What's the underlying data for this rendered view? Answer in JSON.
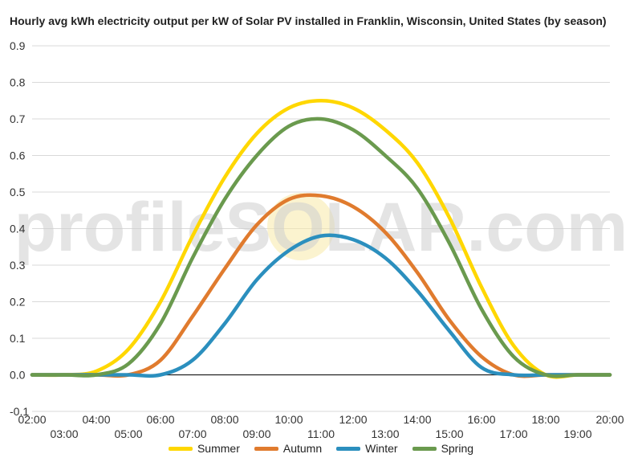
{
  "chart_data": {
    "type": "line",
    "title": "Hourly avg kWh electricity output per kW of Solar PV installed in Franklin, Wisconsin, United States (by season)",
    "watermark": "profileSOLAR.com",
    "x_ticks_upper": [
      "02:00",
      "04:00",
      "06:00",
      "08:00",
      "10:00",
      "12:00",
      "14:00",
      "16:00",
      "18:00",
      "20:00"
    ],
    "x_ticks_lower": [
      "03:00",
      "05:00",
      "07:00",
      "09:00",
      "11:00",
      "13:00",
      "15:00",
      "17:00",
      "19:00"
    ],
    "x_range": [
      2,
      20
    ],
    "ylim": [
      -0.1,
      0.9
    ],
    "y_ticks": [
      "-0.1",
      "0.0",
      "0.1",
      "0.2",
      "0.3",
      "0.4",
      "0.5",
      "0.6",
      "0.7",
      "0.8",
      "0.9"
    ],
    "grid": true,
    "legend_position": "bottom",
    "x": [
      "02:00",
      "03:00",
      "04:00",
      "05:00",
      "06:00",
      "07:00",
      "08:00",
      "09:00",
      "10:00",
      "11:00",
      "12:00",
      "13:00",
      "14:00",
      "15:00",
      "16:00",
      "17:00",
      "18:00",
      "19:00",
      "20:00"
    ],
    "series": [
      {
        "name": "Summer",
        "color": "#ffd700",
        "values": [
          0.0,
          0.0,
          0.01,
          0.07,
          0.2,
          0.38,
          0.54,
          0.66,
          0.73,
          0.75,
          0.73,
          0.67,
          0.58,
          0.43,
          0.24,
          0.08,
          0.0,
          0.0,
          0.0
        ]
      },
      {
        "name": "Autumn",
        "color": "#e07b2e",
        "values": [
          0.0,
          0.0,
          0.0,
          0.0,
          0.04,
          0.16,
          0.29,
          0.41,
          0.48,
          0.49,
          0.46,
          0.39,
          0.28,
          0.15,
          0.05,
          0.0,
          0.0,
          0.0,
          0.0
        ]
      },
      {
        "name": "Winter",
        "color": "#2b8fbe",
        "values": [
          0.0,
          0.0,
          0.0,
          0.0,
          0.0,
          0.04,
          0.14,
          0.26,
          0.34,
          0.38,
          0.37,
          0.32,
          0.23,
          0.12,
          0.02,
          0.0,
          0.0,
          0.0,
          0.0
        ]
      },
      {
        "name": "Spring",
        "color": "#6a9a4e",
        "values": [
          0.0,
          0.0,
          0.0,
          0.03,
          0.14,
          0.32,
          0.48,
          0.6,
          0.68,
          0.7,
          0.67,
          0.6,
          0.51,
          0.36,
          0.18,
          0.05,
          0.0,
          0.0,
          0.0
        ]
      }
    ]
  }
}
